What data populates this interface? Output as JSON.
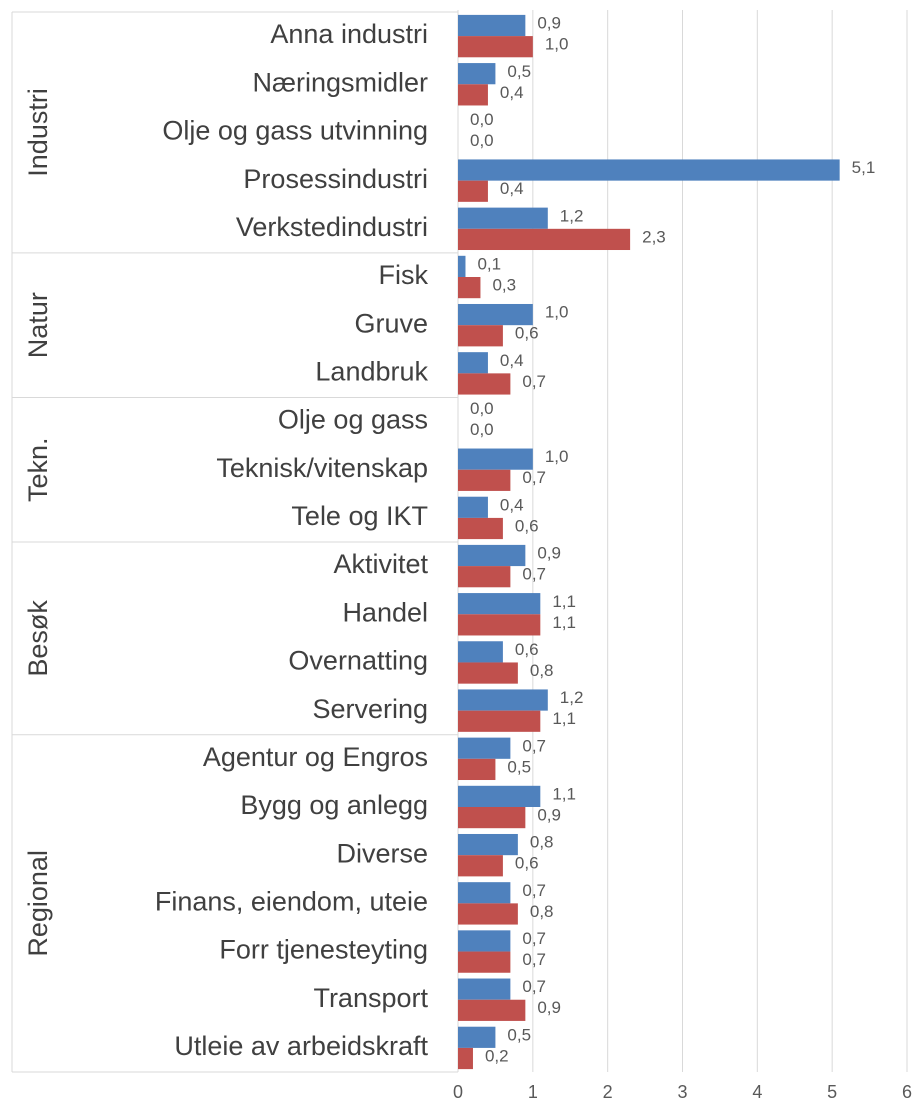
{
  "chart_data": {
    "type": "bar",
    "orientation": "horizontal",
    "groups": [
      {
        "name": "Industri",
        "categories": [
          "Anna industri",
          "Næringsmidler",
          "Olje og gass utvinning",
          "Prosessindustri",
          "Verkstedindustri"
        ]
      },
      {
        "name": "Natur",
        "categories": [
          "Fisk",
          "Gruve",
          "Landbruk"
        ]
      },
      {
        "name": "Tekn.",
        "categories": [
          "Olje og gass",
          "Teknisk/vitenskap",
          "Tele og IKT"
        ]
      },
      {
        "name": "Besøk",
        "categories": [
          "Aktivitet",
          "Handel",
          "Overnatting",
          "Servering"
        ]
      },
      {
        "name": "Regional",
        "categories": [
          "Agentur og Engros",
          "Bygg og anlegg",
          "Diverse",
          "Finans, eiendom, uteie",
          "Forr tjenesteyting",
          "Transport",
          "Utleie av arbeidskraft"
        ]
      }
    ],
    "series": [
      {
        "color": "#4f81bd",
        "values": [
          0.9,
          0.5,
          0,
          5.1,
          1.2,
          0.1,
          1.0,
          0.4,
          0,
          1.0,
          0.4,
          0.9,
          1.1,
          0.6,
          1.2,
          0.7,
          1.1,
          0.8,
          0.7,
          0.7,
          0.7,
          0.5
        ],
        "value_labels": [
          "0,9",
          "0,5",
          "0,0",
          "5,1",
          "1,2",
          "0,1",
          "1,0",
          "0,4",
          "0,0",
          "1,0",
          "0,4",
          "0,9",
          "1,1",
          "0,6",
          "1,2",
          "0,7",
          "1,1",
          "0,8",
          "0,7",
          "0,7",
          "0,7",
          "0,5"
        ]
      },
      {
        "color": "#c0504d",
        "values": [
          1.0,
          0.4,
          0,
          0.4,
          2.3,
          0.3,
          0.6,
          0.7,
          0,
          0.7,
          0.6,
          0.7,
          1.1,
          0.8,
          1.1,
          0.5,
          0.9,
          0.6,
          0.8,
          0.7,
          0.9,
          0.2
        ],
        "value_labels": [
          "1,0",
          "0,4",
          "0,0",
          "0,4",
          "2,3",
          "0,3",
          "0,6",
          "0,7",
          "0,0",
          "0,7",
          "0,6",
          "0,7",
          "1,1",
          "0,8",
          "1,1",
          "0,5",
          "0,9",
          "0,6",
          "0,8",
          "0,7",
          "0,9",
          "0,2"
        ]
      }
    ],
    "xlim": [
      0,
      6
    ],
    "xticks": [
      0,
      1,
      2,
      3,
      4,
      5,
      6
    ],
    "grid": true
  }
}
